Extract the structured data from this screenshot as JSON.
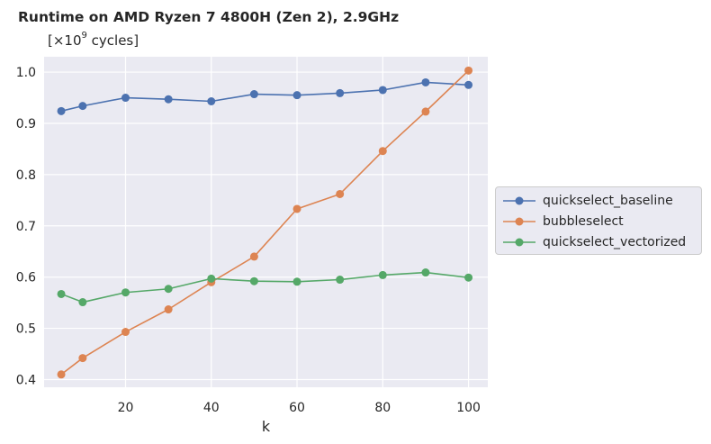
{
  "chart_data": {
    "type": "line",
    "title": "Runtime on AMD Ryzen 7 4800H (Zen 2),  2.9GHz",
    "subtitle": {
      "prefix": "[×10",
      "exponent": "9",
      "suffix": " cycles]"
    },
    "xlabel": "k",
    "ylabel": "",
    "xlim": [
      1,
      104.5
    ],
    "ylim": [
      0.385,
      1.03
    ],
    "xticks": [
      20,
      40,
      60,
      80,
      100
    ],
    "yticks": [
      0.4,
      0.5,
      0.6,
      0.7,
      0.8,
      0.9,
      1.0
    ],
    "ytick_labels": [
      "0.4",
      "0.5",
      "0.6",
      "0.7",
      "0.8",
      "0.9",
      "1.0"
    ],
    "grid": true,
    "legend_position": "center-right-outside",
    "x": [
      5,
      10,
      20,
      30,
      40,
      50,
      60,
      70,
      80,
      90,
      100
    ],
    "series": [
      {
        "name": "quickselect_baseline",
        "color": "#4c72b0",
        "values": [
          0.924,
          0.934,
          0.95,
          0.947,
          0.943,
          0.957,
          0.955,
          0.959,
          0.965,
          0.98,
          0.975
        ]
      },
      {
        "name": "bubbleselect",
        "color": "#dd8452",
        "values": [
          0.41,
          0.442,
          0.493,
          0.537,
          0.59,
          0.64,
          0.733,
          0.762,
          0.846,
          0.923,
          1.003
        ]
      },
      {
        "name": "quickselect_vectorized",
        "color": "#55a868",
        "values": [
          0.567,
          0.551,
          0.57,
          0.577,
          0.597,
          0.592,
          0.591,
          0.595,
          0.604,
          0.609,
          0.599
        ]
      }
    ]
  }
}
